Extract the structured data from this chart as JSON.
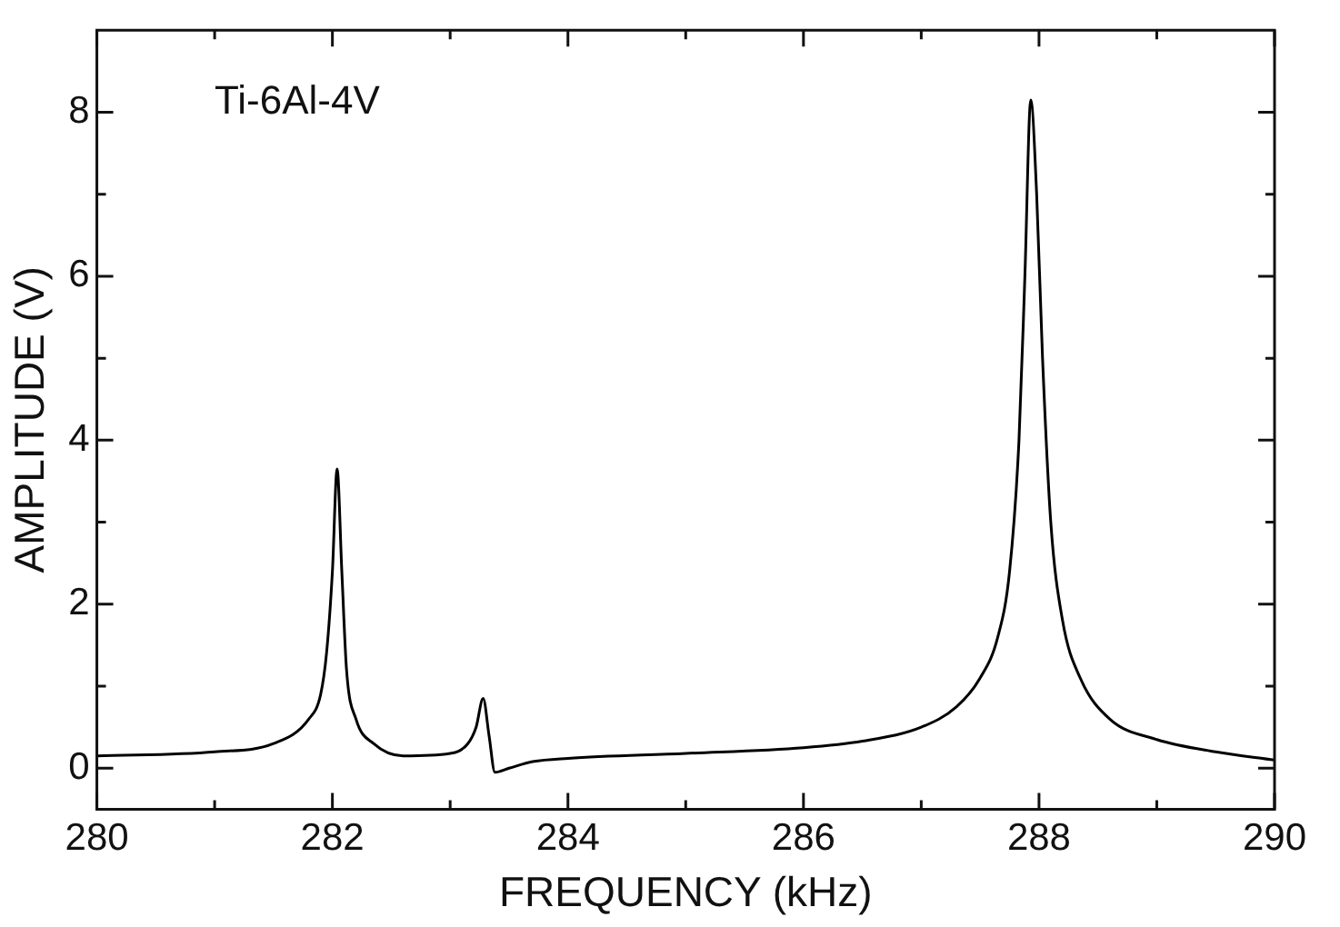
{
  "chart_data": {
    "type": "line",
    "xlabel": "FREQUENCY (kHz)",
    "ylabel": "AMPLITUDE (V)",
    "annotations": [
      "Ti-6Al-4V"
    ],
    "x": [
      280,
      281,
      281.5,
      281.8,
      281.9,
      281.95,
      282.0,
      282.04,
      282.08,
      282.12,
      282.2,
      282.35,
      282.6,
      283.0,
      283.15,
      283.22,
      283.28,
      283.33,
      283.38,
      283.5,
      283.7,
      284,
      285,
      286,
      286.5,
      287,
      287.3,
      287.5,
      287.65,
      287.75,
      287.83,
      287.88,
      287.93,
      287.98,
      288.03,
      288.1,
      288.2,
      288.35,
      288.6,
      289,
      289.5,
      290
    ],
    "series": [
      {
        "color": "#000000",
        "values": [
          0.15,
          0.2,
          0.3,
          0.6,
          0.9,
          1.4,
          2.4,
          3.65,
          2.4,
          1.2,
          0.6,
          0.3,
          0.15,
          0.18,
          0.3,
          0.5,
          0.85,
          0.4,
          -0.05,
          0.0,
          0.08,
          0.12,
          0.18,
          0.25,
          0.33,
          0.5,
          0.75,
          1.1,
          1.6,
          2.4,
          4.0,
          6.0,
          8.15,
          7.0,
          5.0,
          3.0,
          1.8,
          1.1,
          0.6,
          0.35,
          0.2,
          0.1
        ]
      }
    ],
    "xlim": [
      280,
      290
    ],
    "ylim": [
      -0.5,
      9
    ],
    "xticks": [
      280,
      {
        "value": 281,
        "label": null
      },
      282,
      {
        "value": 283,
        "label": null
      },
      284,
      {
        "value": 285,
        "label": null
      },
      286,
      {
        "value": 287,
        "label": null
      },
      288,
      {
        "value": 289,
        "label": null
      },
      290
    ],
    "yticks": [
      0,
      {
        "value": 1,
        "label": null
      },
      2,
      {
        "value": 3,
        "label": null
      },
      4,
      {
        "value": 5,
        "label": null
      },
      6,
      {
        "value": 7,
        "label": null
      },
      8
    ],
    "grid": false,
    "legend": false,
    "marker": "none",
    "line_style": "solid"
  }
}
